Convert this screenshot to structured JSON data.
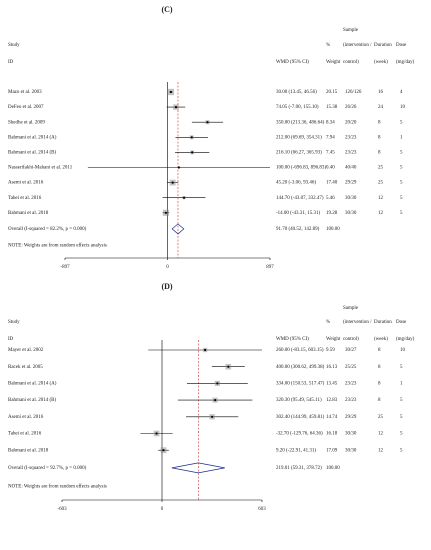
{
  "chart_data": [
    {
      "type": "forest",
      "panel": "(C)",
      "header": {
        "study": "Study",
        "id": "ID",
        "wmd": "WMD (95% CI)",
        "pct": "%",
        "weight": "Weight",
        "sample": "Sample",
        "sample_sub1": "(intervention /",
        "sample_sub2": "control)",
        "duration": "Duration",
        "duration_sub": "(week)",
        "dose": "Dose",
        "dose_sub": "(mg/day)"
      },
      "studies": [
        "Mazo et al. 2003",
        "DeFeo et al. 2007",
        "Shedhe et al. 2009",
        "Bahmani et al. 2014 (A)",
        "Bahmani et al. 2014 (B)",
        "Nasserifakhi-Mahani et al. 2011",
        "Asemi et al. 2016",
        "Tabei et al. 2016",
        "Bahmani et al. 2018"
      ],
      "values": [
        30.0,
        74.05,
        350.0,
        212.0,
        216.1,
        100.0,
        45.2,
        144.7,
        -14.0
      ],
      "lower": [
        13.45,
        -7.0,
        213.36,
        69.69,
        66.27,
        -696.83,
        -3.06,
        -43.07,
        -43.31
      ],
      "upper": [
        46.56,
        155.1,
        486.64,
        354.31,
        365.93,
        896.83,
        93.46,
        332.47,
        15.31
      ],
      "value_labels": [
        "30.00 (13.45, 46.56)",
        "74.05 (-7.00, 155.10)",
        "350.00 (213.36, 486.64)",
        "212.00 (69.69, 354.31)",
        "216.10 (66.27, 365.93)",
        "100.00 (-696.83, 896.83)",
        "45.20 (-3.06, 93.46)",
        "144.70 (-43.07, 332.47)",
        "-14.00 (-43.31, 15.31)"
      ],
      "weights": [
        20.15,
        15.38,
        8.34,
        7.94,
        7.45,
        0.4,
        17.4,
        5.46,
        19.28
      ],
      "weight_labels": [
        "20.15",
        "15.38",
        "8.34",
        "7.94",
        "7.45",
        "0.40",
        "17.40",
        "5.46",
        "19.28"
      ],
      "samples": [
        "126/126",
        "26/26",
        "20/20",
        "23/23",
        "23/23",
        "40/40",
        "29/29",
        "30/30",
        "30/30"
      ],
      "durations": [
        16,
        24,
        8,
        8,
        8,
        25,
        25,
        12,
        12
      ],
      "doses": [
        4,
        10,
        5,
        1,
        5,
        5,
        5,
        5,
        5
      ],
      "overall": {
        "label": "Overall (I-squared = 82.2%, p = 0.000)",
        "value": 91.7,
        "lower": 40.52,
        "upper": 142.89,
        "value_label": "91.70 (40.52, 142.89)",
        "weight_label": "100.00"
      },
      "note": "NOTE: Weights are from random effects analysis",
      "xlim": [
        -897,
        897
      ],
      "xticks": [
        -897,
        0,
        897
      ]
    },
    {
      "type": "forest",
      "panel": "(D)",
      "header": {
        "study": "Study",
        "id": "ID",
        "wmd": "WMD (95% CI)",
        "pct": "%",
        "weight": "Weight",
        "sample": "Sample",
        "sample_sub1": "(intervention /",
        "sample_sub2": "control)",
        "duration": "Duration",
        "duration_sub": "(week)",
        "dose": "Dose",
        "dose_sub": "(mg/day)"
      },
      "studies": [
        "Mayer et al. 2002",
        "Racek et al. 2005",
        "Bahmani et al. 2014 (A)",
        "Bahmani et al. 2014 (B)",
        "Asemi et al. 2016",
        "Tabei et al. 2016",
        "Bahmani et al. 2018"
      ],
      "values": [
        260.0,
        400.0,
        334.0,
        320.3,
        302.4,
        -32.7,
        9.2
      ],
      "lower": [
        -83.15,
        300.62,
        150.53,
        95.49,
        144.99,
        -129.76,
        -22.91
      ],
      "upper": [
        603.15,
        499.38,
        517.47,
        545.11,
        459.81,
        64.36,
        41.31
      ],
      "value_labels": [
        "260.00 (-83.15, 603.15)",
        "400.00 (300.62, 499.38)",
        "334.00 (150.53, 517.47)",
        "320.30 (95.49, 545.11)",
        "302.40 (144.99, 459.81)",
        "-32.70 (-129.76, 64.36)",
        "9.20 (-22.91, 41.31)"
      ],
      "weights": [
        9.59,
        16.13,
        13.45,
        12.83,
        14.74,
        16.18,
        17.09
      ],
      "weight_labels": [
        "9.59",
        "16.13",
        "13.45",
        "12.83",
        "14.74",
        "16.18",
        "17.09"
      ],
      "samples": [
        "30/27",
        "25/25",
        "23/23",
        "23/23",
        "29/29",
        "30/30",
        "30/30"
      ],
      "durations": [
        8,
        8,
        8,
        8,
        25,
        12,
        12
      ],
      "doses": [
        10,
        5,
        1,
        5,
        5,
        5,
        5
      ],
      "overall": {
        "label": "Overall (I-squared = 92.7%, p = 0.000)",
        "value": 219.01,
        "lower": 59.31,
        "upper": 378.72,
        "value_label": "219.01 (59.31, 378.72)",
        "weight_label": "100.00"
      },
      "note": "NOTE: Weights are from random effects analysis",
      "xlim": [
        -603,
        603
      ],
      "xticks": [
        -603,
        0,
        603
      ]
    }
  ]
}
